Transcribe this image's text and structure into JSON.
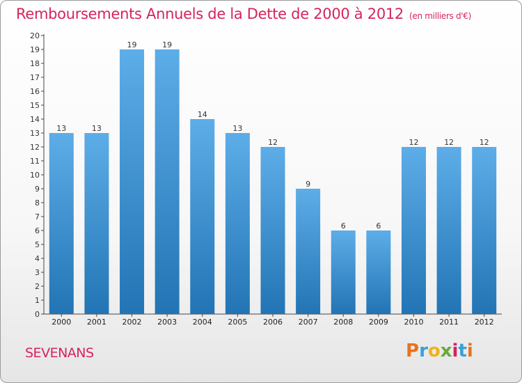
{
  "header": {
    "title": "Remboursements Annuels de la Dette de 2000 à 2012",
    "subtitle": "(en milliers d'€)"
  },
  "footer": {
    "commune": "SEVENANS",
    "logo_text": "Proxiti"
  },
  "colors": {
    "title": "#d6245a",
    "bar_top": "#5dade8",
    "bar_bottom": "#2274b4"
  },
  "chart_data": {
    "type": "bar",
    "title": "Remboursements Annuels de la Dette de 2000 à 2012",
    "subtitle": "(en milliers d'€)",
    "categories": [
      "2000",
      "2001",
      "2002",
      "2003",
      "2004",
      "2005",
      "2006",
      "2007",
      "2008",
      "2009",
      "2010",
      "2011",
      "2012"
    ],
    "values": [
      13,
      13,
      19,
      19,
      14,
      13,
      12,
      9,
      6,
      6,
      12,
      12,
      12
    ],
    "ylim": [
      0,
      20
    ],
    "yticks": [
      0,
      1,
      2,
      3,
      4,
      5,
      6,
      7,
      8,
      9,
      10,
      11,
      12,
      13,
      14,
      15,
      16,
      17,
      18,
      19,
      20
    ],
    "grid": false,
    "data_labels": true
  }
}
